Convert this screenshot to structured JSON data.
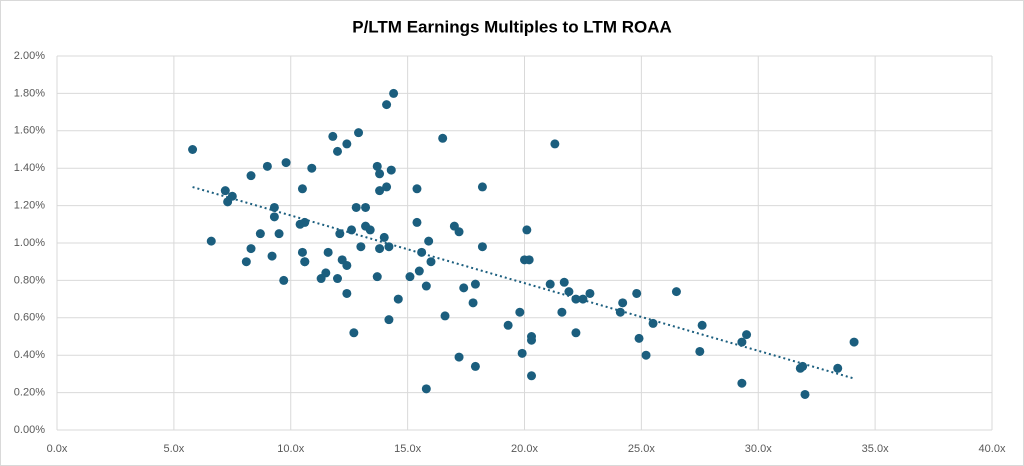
{
  "chart_data": {
    "type": "scatter",
    "title": "P/LTM Earnings Multiples to LTM ROAA",
    "color": "#1b5e7e",
    "grid": true,
    "trendline": true,
    "xlim": [
      0,
      40
    ],
    "ylim": [
      0,
      2
    ],
    "xticks": [
      {
        "value": 0,
        "label": "0.0x"
      },
      {
        "value": 5,
        "label": "5.0x"
      },
      {
        "value": 10,
        "label": "10.0x"
      },
      {
        "value": 15,
        "label": "15.0x"
      },
      {
        "value": 20,
        "label": "20.0x"
      },
      {
        "value": 25,
        "label": "25.0x"
      },
      {
        "value": 30,
        "label": "30.0x"
      },
      {
        "value": 35,
        "label": "35.0x"
      },
      {
        "value": 40,
        "label": "40.0x"
      }
    ],
    "yticks": [
      {
        "value": 0,
        "label": "0.00%"
      },
      {
        "value": 0.2,
        "label": "0.20%"
      },
      {
        "value": 0.4,
        "label": "0.40%"
      },
      {
        "value": 0.6,
        "label": "0.60%"
      },
      {
        "value": 0.8,
        "label": "0.80%"
      },
      {
        "value": 1,
        "label": "1.00%"
      },
      {
        "value": 1.2,
        "label": "1.20%"
      },
      {
        "value": 1.4,
        "label": "1.40%"
      },
      {
        "value": 1.6,
        "label": "1.60%"
      },
      {
        "value": 1.8,
        "label": "1.80%"
      },
      {
        "value": 2,
        "label": "2.00%"
      }
    ],
    "x": [
      5.8,
      6.6,
      7.2,
      7.3,
      7.5,
      8.1,
      8.3,
      8.3,
      8.7,
      9.0,
      9.2,
      9.3,
      9.3,
      9.5,
      9.7,
      9.8,
      10.4,
      10.5,
      10.5,
      10.6,
      10.6,
      10.6,
      10.9,
      11.3,
      11.5,
      11.6,
      11.8,
      12.0,
      12.0,
      12.1,
      12.2,
      12.4,
      12.4,
      12.4,
      12.6,
      12.7,
      12.8,
      12.9,
      13.0,
      13.2,
      13.2,
      13.4,
      13.7,
      13.7,
      13.8,
      13.8,
      13.8,
      14.0,
      14.1,
      14.1,
      14.2,
      14.2,
      14.3,
      14.4,
      14.6,
      15.1,
      15.4,
      15.4,
      15.5,
      15.6,
      15.9,
      15.8,
      15.8,
      16.0,
      16.5,
      16.6,
      17.0,
      17.2,
      17.2,
      17.4,
      17.8,
      17.9,
      17.9,
      18.2,
      18.2,
      19.3,
      19.8,
      19.9,
      20.0,
      20.1,
      20.2,
      20.3,
      20.3,
      20.3,
      21.1,
      21.3,
      21.6,
      21.7,
      21.9,
      22.2,
      22.2,
      22.5,
      22.8,
      24.1,
      24.2,
      24.8,
      24.9,
      25.2,
      25.5,
      26.5,
      27.5,
      27.6,
      29.3,
      29.3,
      29.5,
      31.8,
      31.9,
      32.0,
      33.4,
      34.1
    ],
    "y": [
      1.5,
      1.01,
      1.28,
      1.22,
      1.25,
      0.9,
      0.97,
      1.36,
      1.05,
      1.41,
      0.93,
      1.19,
      1.14,
      1.05,
      0.8,
      1.43,
      1.1,
      1.29,
      0.95,
      0.9,
      0.9,
      1.11,
      1.4,
      0.81,
      0.84,
      0.95,
      1.57,
      0.81,
      1.49,
      1.05,
      0.91,
      0.88,
      0.73,
      1.53,
      1.07,
      0.52,
      1.19,
      1.59,
      0.98,
      1.19,
      1.09,
      1.07,
      0.82,
      1.41,
      1.37,
      0.97,
      1.28,
      1.03,
      1.74,
      1.3,
      0.98,
      0.59,
      1.39,
      1.8,
      0.7,
      0.82,
      1.29,
      1.11,
      0.85,
      0.95,
      1.01,
      0.77,
      0.22,
      0.9,
      1.56,
      0.61,
      1.09,
      1.06,
      0.39,
      0.76,
      0.68,
      0.78,
      0.34,
      1.3,
      0.98,
      0.56,
      0.63,
      0.41,
      0.91,
      1.07,
      0.91,
      0.5,
      0.48,
      0.29,
      0.78,
      1.53,
      0.63,
      0.79,
      0.74,
      0.7,
      0.52,
      0.7,
      0.73,
      0.63,
      0.68,
      0.73,
      0.49,
      0.4,
      0.57,
      0.74,
      0.42,
      0.56,
      0.25,
      0.47,
      0.51,
      0.33,
      0.34,
      0.19,
      0.33,
      0.47
    ]
  }
}
